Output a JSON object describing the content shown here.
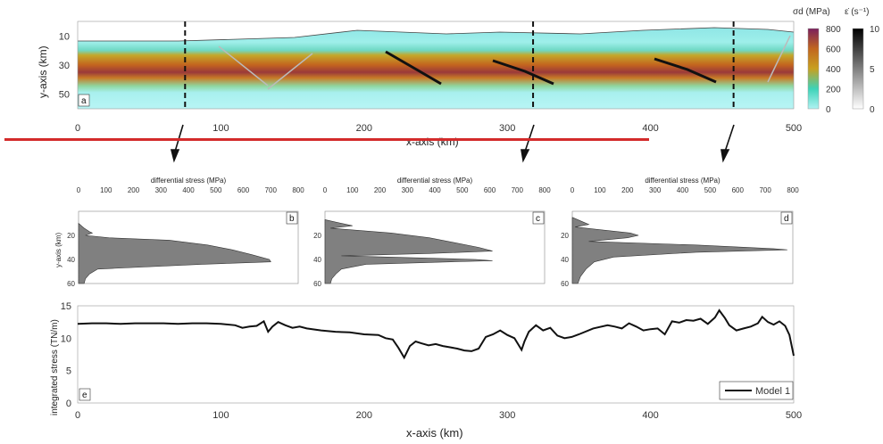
{
  "chart_data": [
    {
      "panel": "a",
      "type": "heatmap",
      "xlabel": "x-axis (km)",
      "ylabel": "y-axis (km)",
      "xlim": [
        0,
        500
      ],
      "ylim": [
        60,
        0
      ],
      "xticks": [
        0,
        100,
        200,
        300,
        400,
        500
      ],
      "yticks": [
        10,
        30,
        50
      ],
      "section_lines_x_km": [
        75,
        318,
        458
      ],
      "colorbars": [
        {
          "label": "σd (MPa)",
          "ticks": [
            0,
            200,
            400,
            600,
            800
          ],
          "colors": [
            "#aef2f2",
            "#3ed3b8",
            "#c8a020",
            "#c1661f",
            "#7a1f5c"
          ]
        },
        {
          "label": "ε̇ (s⁻¹)",
          "ticks": [
            0,
            5,
            10
          ],
          "colors": [
            "#ffffff",
            "#000000"
          ]
        }
      ]
    },
    {
      "panel": "b",
      "type": "area",
      "xlabel": "differential stress (MPa)",
      "ylabel": "y-axis (km)",
      "xlim": [
        0,
        800
      ],
      "ylim": [
        60,
        0
      ],
      "xticks": [
        0,
        100,
        200,
        300,
        400,
        500,
        600,
        700,
        800
      ],
      "yticks": [
        20,
        40,
        60
      ],
      "depth": [
        10,
        14,
        17,
        18,
        20,
        22,
        24,
        28,
        32,
        36,
        40,
        42,
        44,
        48,
        52,
        56,
        60
      ],
      "stress": [
        0,
        20,
        40,
        50,
        25,
        110,
        330,
        470,
        560,
        630,
        695,
        700,
        450,
        70,
        40,
        25,
        20
      ]
    },
    {
      "panel": "c",
      "type": "area",
      "xlabel": "differential stress (MPa)",
      "xlim": [
        0,
        800
      ],
      "ylim": [
        60,
        0
      ],
      "xticks": [
        0,
        100,
        200,
        300,
        400,
        500,
        600,
        700,
        800
      ],
      "yticks": [
        20,
        40,
        60
      ],
      "depth": [
        7,
        9,
        12,
        14,
        18,
        22,
        26,
        30,
        33,
        35,
        37,
        40,
        41,
        44,
        48,
        52,
        56,
        60
      ],
      "stress": [
        0,
        40,
        100,
        20,
        240,
        380,
        470,
        560,
        610,
        380,
        60,
        550,
        610,
        150,
        60,
        40,
        25,
        20
      ]
    },
    {
      "panel": "d",
      "type": "area",
      "xlabel": "differential stress (MPa)",
      "xlim": [
        0,
        800
      ],
      "ylim": [
        60,
        0
      ],
      "xticks": [
        0,
        100,
        200,
        300,
        400,
        500,
        600,
        700,
        800
      ],
      "yticks": [
        20,
        40,
        60
      ],
      "depth": [
        5,
        8,
        11,
        13,
        15,
        18,
        20,
        22,
        25,
        28,
        31,
        32,
        34,
        38,
        42,
        48,
        54,
        60
      ],
      "stress": [
        0,
        30,
        60,
        10,
        90,
        210,
        240,
        200,
        60,
        450,
        730,
        780,
        450,
        150,
        80,
        50,
        30,
        20
      ]
    },
    {
      "panel": "e",
      "type": "line",
      "xlabel": "x-axis (km)",
      "ylabel": "integrated stress (TN/m)",
      "xlim": [
        0,
        500
      ],
      "ylim": [
        0,
        15
      ],
      "xticks": [
        0,
        100,
        200,
        300,
        400,
        500
      ],
      "yticks": [
        0,
        5,
        10,
        15
      ],
      "series": [
        {
          "name": "Model 1",
          "x": [
            0,
            10,
            20,
            30,
            40,
            50,
            60,
            70,
            80,
            90,
            100,
            110,
            115,
            120,
            125,
            130,
            133,
            136,
            140,
            145,
            150,
            155,
            160,
            170,
            180,
            190,
            200,
            210,
            215,
            220,
            224,
            228,
            232,
            236,
            240,
            245,
            250,
            255,
            260,
            265,
            270,
            275,
            280,
            285,
            290,
            295,
            300,
            305,
            310,
            312,
            315,
            320,
            325,
            330,
            335,
            340,
            345,
            350,
            360,
            370,
            375,
            380,
            385,
            390,
            395,
            400,
            405,
            410,
            415,
            420,
            425,
            430,
            435,
            440,
            445,
            448,
            452,
            455,
            460,
            465,
            470,
            475,
            478,
            482,
            486,
            490,
            494,
            497,
            500
          ],
          "y": [
            12.2,
            12.3,
            12.3,
            12.2,
            12.3,
            12.3,
            12.3,
            12.2,
            12.3,
            12.3,
            12.2,
            12.0,
            11.6,
            11.8,
            11.9,
            12.6,
            11.0,
            11.8,
            12.5,
            12.0,
            11.6,
            11.8,
            11.5,
            11.2,
            11.0,
            10.9,
            10.6,
            10.5,
            10.0,
            9.8,
            8.5,
            7.0,
            8.8,
            9.5,
            9.2,
            8.9,
            9.1,
            8.8,
            8.6,
            8.4,
            8.1,
            8.0,
            8.4,
            10.2,
            10.6,
            11.2,
            10.5,
            10.0,
            8.2,
            9.5,
            11.0,
            12.0,
            11.2,
            11.6,
            10.4,
            10.0,
            10.2,
            10.6,
            11.5,
            12.0,
            11.8,
            11.5,
            12.3,
            11.8,
            11.2,
            11.4,
            11.5,
            10.6,
            12.6,
            12.4,
            12.8,
            12.7,
            13.0,
            12.2,
            13.2,
            14.3,
            13.1,
            12.0,
            11.2,
            11.5,
            11.8,
            12.3,
            13.3,
            12.5,
            12.1,
            12.6,
            11.9,
            10.5,
            7.3
          ]
        }
      ],
      "legend": "bottom-right"
    }
  ],
  "labels": {
    "panel_a": "a",
    "panel_b": "b",
    "panel_c": "c",
    "panel_d": "d",
    "panel_e": "e",
    "legend_model": "Model 1",
    "cb1_title": "σd (MPa)",
    "cb2_title": "ε̇ (s⁻¹)"
  },
  "colors": {
    "divider": "#d32b2b",
    "profile_fill": "#808080",
    "line": "#111111"
  }
}
